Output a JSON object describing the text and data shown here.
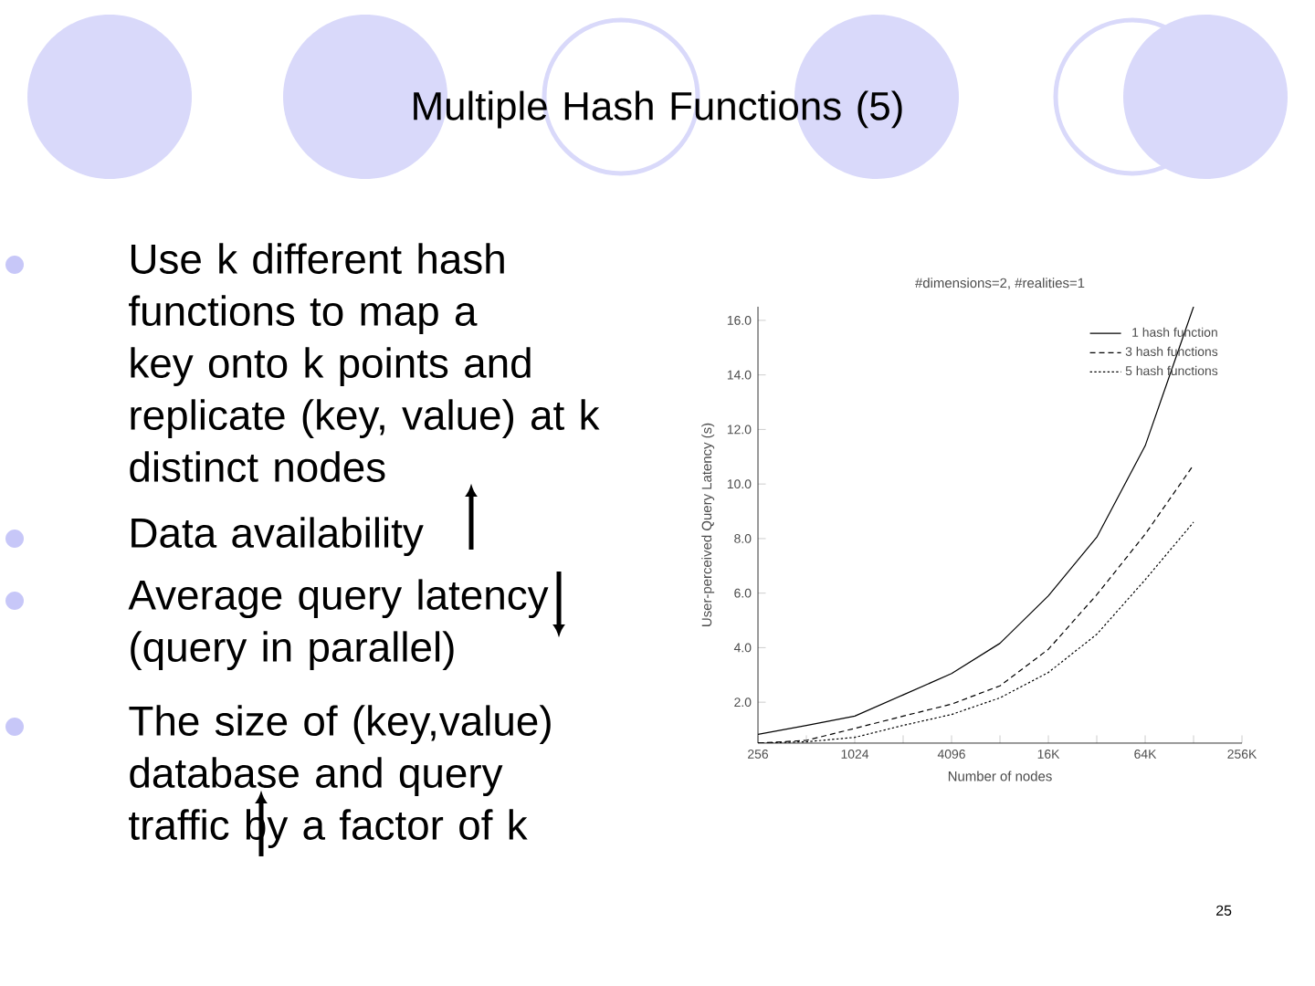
{
  "chart_data": {
    "type": "line",
    "title": "Multiple Hash Functions (5)",
    "subtitle": "#dimensions=2, #realities=1",
    "xlabel": "Number of nodes",
    "ylabel": "User-perceived Query Latency (s)",
    "annotations": [
      "Use k different hash functions to map a key onto k points and replicate (key, value) at k distinct nodes",
      "Data availability",
      "Average query latency (query in parallel)",
      "The size of (key,value) database and query traffic by a factor of k",
      "25"
    ],
    "categories": [
      "256",
      null,
      "1024",
      null,
      "4096",
      null,
      "16K",
      null,
      "64K",
      null,
      "256K"
    ],
    "series": [
      {
        "name": "1 hash function",
        "color": "#000000",
        "line_style": "solid",
        "values": [
          0.82,
          1.15,
          1.49,
          2.27,
          3.05,
          4.16,
          5.9,
          8.05,
          11.4,
          16.5,
          null
        ]
      },
      {
        "name": "3 hash functions",
        "color": "#000000",
        "line_style": "dashed",
        "values": [
          0.5,
          0.6,
          1.04,
          1.49,
          1.93,
          2.6,
          3.94,
          5.94,
          8.16,
          10.7,
          null
        ]
      },
      {
        "name": "5 hash functions",
        "color": "#000000",
        "line_style": "dotted",
        "values": [
          0.5,
          0.55,
          0.71,
          1.15,
          1.55,
          2.16,
          3.09,
          4.49,
          6.49,
          8.6,
          null
        ]
      }
    ],
    "ylim": [
      0.5,
      16.5
    ],
    "yticks": [
      {
        "value": 2,
        "label": "2.0"
      },
      {
        "value": 4,
        "label": "4.0"
      },
      {
        "value": 6,
        "label": "6.0"
      },
      {
        "value": 8,
        "label": "8.0"
      },
      {
        "value": 10,
        "label": "10.0"
      },
      {
        "value": 12,
        "label": "12.0"
      },
      {
        "value": 14,
        "label": "14.0"
      },
      {
        "value": 16,
        "label": "16.0"
      }
    ],
    "grid": false,
    "legend": "top right",
    "marker": "none"
  }
}
